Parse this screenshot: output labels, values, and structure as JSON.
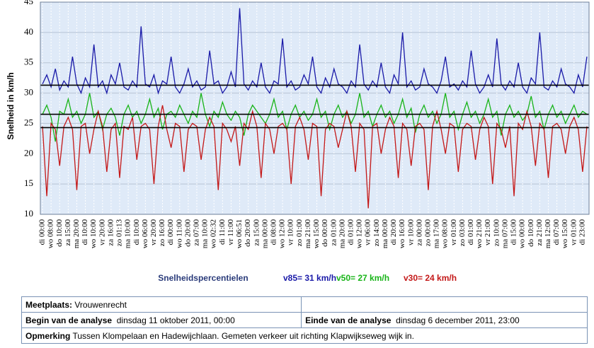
{
  "chart_data": {
    "type": "line",
    "ylabel": "Snelheid in  km/h",
    "legend_title": "Snelheidspercentielen",
    "ylim": [
      10,
      45
    ],
    "yticks": [
      10,
      15,
      20,
      25,
      30,
      35,
      40,
      45
    ],
    "grid": true,
    "reference_lines": [
      31.3,
      26.5,
      24.3
    ],
    "categories": [
      "di 00:00",
      null,
      "wo 08:00",
      null,
      "do 10:00",
      null,
      "za 15:00",
      null,
      "ma 20:00",
      null,
      "di 10:00",
      null,
      "wo 10:00",
      null,
      "vr 20:00",
      null,
      "za 16:00",
      null,
      "zo 01:13",
      null,
      "ma 10:00",
      null,
      "di 10:00",
      null,
      "wo 06:00",
      null,
      "vr 20:00",
      null,
      "zo 16:00",
      null,
      "di 00:00",
      null,
      "wo 11:00",
      null,
      "do 20:00",
      null,
      "za 07:00",
      null,
      "ma 10:00",
      null,
      "wo 02:32",
      null,
      "di 11:00",
      null,
      "vr 11:00",
      null,
      "wo 06:51",
      null,
      "do 20:00",
      null,
      "za 15:00",
      null,
      "ma 00:00",
      null,
      "di 08:00",
      null,
      "wo 12:00",
      null,
      "vr 10:00",
      null,
      "zo 01:00",
      null,
      "ma 21:00",
      null,
      "wo 15:00",
      null,
      "do 00:00",
      null,
      "za 01:00",
      null,
      "ma 20:00",
      null,
      "di 01:00",
      null,
      "wo 12:00",
      null,
      "vr 06:00",
      null,
      "zo 14:00",
      null,
      "ma 00:00",
      null,
      "di 20:00",
      null,
      "wo 16:00",
      null,
      "vr 10:00",
      null,
      "za 00:00",
      null,
      "zo 00:00",
      null,
      "ma 17:00",
      null,
      "wo 08:00",
      null,
      "vr 01:00",
      null,
      "zo 03:00",
      null,
      "di 01:00",
      null,
      "wo 21:00",
      null,
      "vr 21:00",
      null,
      "zo 10:00",
      null,
      "ma 07:00",
      null,
      "di 15:00",
      null,
      "wo 00:00",
      null,
      "do 10:00",
      null,
      "za 21:00",
      null,
      "ma 12:00",
      null,
      "di 07:00",
      null,
      "wo 15:00",
      null,
      "vr 01:00",
      null,
      "di 23:00",
      null
    ],
    "series": [
      {
        "name": "v85= 31 km/h",
        "color": "#1a1aa8",
        "values": [
          31.5,
          33,
          31,
          34,
          30.5,
          32,
          31,
          36,
          31.5,
          30,
          32.5,
          31,
          38,
          31,
          32,
          30,
          33,
          31.5,
          35,
          31,
          30.5,
          32,
          31,
          41,
          31.5,
          31,
          33,
          30,
          32,
          31.5,
          36,
          31,
          30,
          31.5,
          34,
          31,
          32,
          30.5,
          31,
          37,
          31.5,
          32,
          30,
          31,
          33.5,
          31,
          44,
          31.5,
          30.5,
          32,
          31,
          35,
          31,
          30,
          32,
          31.5,
          39,
          31,
          32,
          30.5,
          31,
          33,
          31.5,
          36,
          31,
          30,
          32.5,
          31,
          34,
          31.5,
          31,
          30,
          32,
          31,
          38,
          31.5,
          30.5,
          32,
          31,
          35,
          31,
          30,
          33,
          31.5,
          40,
          31,
          32,
          30.5,
          31,
          34,
          31.5,
          31,
          30,
          32,
          36,
          31,
          31.5,
          30.5,
          32,
          31,
          37,
          31.5,
          30,
          31,
          33,
          31,
          39,
          31.5,
          30.5,
          32,
          31,
          35,
          31,
          30,
          32.5,
          31.5,
          40,
          31,
          30.5,
          32,
          31,
          34,
          31.5,
          31,
          30,
          33,
          31,
          36
        ]
      },
      {
        "name": "v50= 27 km/h",
        "color": "#18b418",
        "values": [
          26.5,
          28,
          26,
          22,
          27,
          26.5,
          29,
          26,
          27,
          25,
          26.5,
          30,
          26,
          27,
          24,
          26.5,
          27.5,
          26,
          23,
          26.5,
          28,
          26,
          27,
          25,
          26.5,
          29,
          26,
          27.5,
          24,
          26.5,
          27,
          26,
          28,
          26.5,
          25,
          27,
          26,
          30,
          26.5,
          24.5,
          27,
          26,
          28.5,
          26.5,
          25.5,
          27,
          26,
          23,
          26.5,
          28,
          27,
          26,
          25,
          26.5,
          29,
          26,
          27,
          24,
          26.5,
          28,
          26,
          27,
          25.5,
          26.5,
          29,
          26,
          27,
          24,
          26.5,
          28,
          26,
          27,
          25,
          26.5,
          30,
          26,
          27,
          24.5,
          26.5,
          28,
          26,
          27,
          25,
          26.5,
          29,
          26,
          27.5,
          23.5,
          26.5,
          28,
          26,
          27,
          25,
          26.5,
          30,
          26,
          27,
          24,
          26.5,
          28.5,
          26,
          27,
          25,
          26.5,
          29,
          26,
          27,
          23,
          26.5,
          28,
          26,
          27,
          25.5,
          26.5,
          29.5,
          26,
          27,
          24,
          26.5,
          28,
          26,
          27,
          25,
          26.5,
          28,
          26,
          27,
          26.5
        ]
      },
      {
        "name": "v30= 24 km/h",
        "color": "#c41818",
        "values": [
          24.5,
          13,
          25,
          24,
          18,
          24.5,
          26,
          24,
          14,
          24.5,
          25,
          20,
          24,
          27,
          24.5,
          17,
          24,
          25,
          16,
          24.5,
          24,
          26,
          19,
          24.5,
          25,
          24,
          15,
          24.5,
          28,
          24,
          21,
          25,
          24.5,
          17,
          24,
          25,
          24.5,
          19,
          24,
          26,
          24.5,
          14,
          25,
          24,
          22,
          24.5,
          18,
          25,
          24,
          27,
          24.5,
          16,
          25,
          24,
          20,
          24.5,
          25,
          24,
          15,
          24.5,
          26,
          24,
          19,
          25,
          24.5,
          13,
          24,
          25,
          24.5,
          21,
          24,
          27,
          24.5,
          17,
          25,
          24,
          11,
          24.5,
          25,
          20,
          24,
          26,
          24.5,
          16,
          25,
          24,
          18,
          24.5,
          25,
          24,
          14,
          24.5,
          27,
          24,
          20,
          25,
          24.5,
          17,
          24,
          25,
          24.5,
          19,
          24,
          26,
          24.5,
          15,
          25,
          24,
          21,
          24.5,
          13,
          25,
          24,
          27,
          24.5,
          18,
          25,
          24,
          16,
          24.5,
          25,
          24,
          20,
          24.5,
          26,
          24,
          17,
          24.5
        ]
      }
    ]
  },
  "info": {
    "location_label": "Meetplaats:",
    "location": "Vrouwenrecht",
    "begin_label": "Begin van de analyse",
    "begin": "dinsdag 11 oktober 2011, 00:00",
    "end_label": "Einde van de analyse",
    "end": "dinsdag 6 december 2011, 23:00",
    "remark_label": "Opmerking",
    "remark": "Tussen Klompelaan en  Hadewijchlaan. Gemeten verkeer uit richting Klapwijkseweg wijk in."
  }
}
